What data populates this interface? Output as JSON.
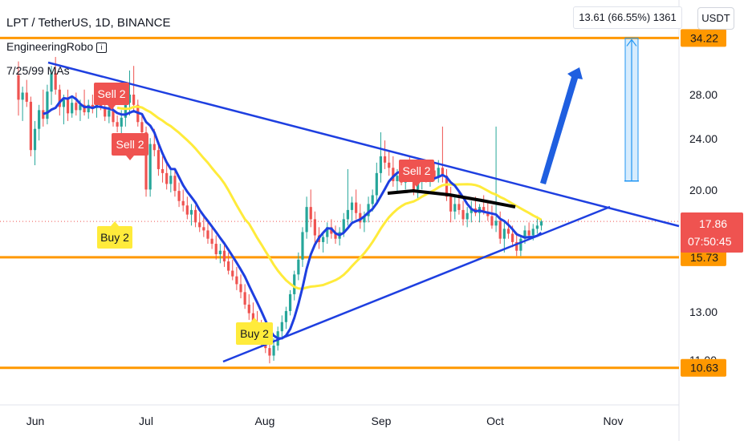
{
  "header": {
    "title": "LPT / TetherUS, 1D, BINANCE",
    "author": "EngineeringRobo",
    "author_icon": "info-icon",
    "indicator": "7/25/99 MAs"
  },
  "currency_button": "USDT",
  "measure_label": "13.61 (66.55%) 1361",
  "last_price": {
    "value": "17.86",
    "countdown": "07:50:45",
    "color": "#ef5350"
  },
  "colors": {
    "trendline": "#1e3fe0",
    "level": "#ff9800",
    "fast_ma": "#1e3fe0",
    "slow_ma": "#ffeb3b",
    "long_ma": "#000000",
    "sell_badge": "#ef5350",
    "buy_badge": "#ffeb3b",
    "arrow": "#1f5fe0",
    "measure": "#2196f3"
  },
  "chart_data": {
    "type": "candlestick",
    "symbol": "LPT / TetherUS",
    "interval": "1D",
    "exchange": "BINANCE",
    "x_ticks": [
      "Jun",
      "Jul",
      "Aug",
      "Sep",
      "Oct",
      "Nov"
    ],
    "y_ticks": [
      "28.00",
      "24.00",
      "20.00",
      "13.00",
      "11.00"
    ],
    "y_scale": "log",
    "price_labels": [
      "34.22",
      "15.73",
      "10.63"
    ],
    "horizontal_levels": [
      34.22,
      15.73,
      10.63
    ],
    "signals": [
      {
        "label": "Sell 2",
        "type": "sell"
      },
      {
        "label": "Sell 2",
        "type": "sell"
      },
      {
        "label": "Buy 2",
        "type": "buy"
      },
      {
        "label": "Buy 2",
        "type": "buy"
      },
      {
        "label": "Sell 2",
        "type": "sell"
      }
    ],
    "candles": [
      [
        30.0,
        31.5,
        26.0,
        27.5
      ],
      [
        27.5,
        28.8,
        25.5,
        28.2
      ],
      [
        28.2,
        29.5,
        26.8,
        27.3
      ],
      [
        27.3,
        27.8,
        22.5,
        23.0
      ],
      [
        23.0,
        25.5,
        21.8,
        24.8
      ],
      [
        24.8,
        27.0,
        23.8,
        26.5
      ],
      [
        26.5,
        28.5,
        25.0,
        25.7
      ],
      [
        25.7,
        29.0,
        25.2,
        28.3
      ],
      [
        28.3,
        31.0,
        27.0,
        30.2
      ],
      [
        30.2,
        32.0,
        28.0,
        28.5
      ],
      [
        28.5,
        29.0,
        26.0,
        26.8
      ],
      [
        26.8,
        28.0,
        25.2,
        27.5
      ],
      [
        27.5,
        28.5,
        25.5,
        26.2
      ],
      [
        26.2,
        27.8,
        25.8,
        27.2
      ],
      [
        27.2,
        28.2,
        26.0,
        26.5
      ],
      [
        26.5,
        27.5,
        25.5,
        27.0
      ],
      [
        27.0,
        28.5,
        26.0,
        26.3
      ],
      [
        26.3,
        27.5,
        25.7,
        27.0
      ],
      [
        27.0,
        28.0,
        26.2,
        26.7
      ],
      [
        26.7,
        27.8,
        25.8,
        27.3
      ],
      [
        27.3,
        28.0,
        26.5,
        26.8
      ],
      [
        26.8,
        27.2,
        25.5,
        25.9
      ],
      [
        25.9,
        27.0,
        25.3,
        26.5
      ],
      [
        26.5,
        27.0,
        25.0,
        25.4
      ],
      [
        25.4,
        26.0,
        24.5,
        25.0
      ],
      [
        25.0,
        26.5,
        24.2,
        25.8
      ],
      [
        25.8,
        28.0,
        25.0,
        27.2
      ],
      [
        27.2,
        30.5,
        26.0,
        28.0
      ],
      [
        28.0,
        31.0,
        26.5,
        27.0
      ],
      [
        27.0,
        27.5,
        25.0,
        25.4
      ],
      [
        25.4,
        26.0,
        24.0,
        24.5
      ],
      [
        24.5,
        25.0,
        19.5,
        20.0
      ],
      [
        20.0,
        24.0,
        19.5,
        23.5
      ],
      [
        23.5,
        24.8,
        22.5,
        23.0
      ],
      [
        23.0,
        23.5,
        21.0,
        21.5
      ],
      [
        21.5,
        22.5,
        20.5,
        21.2
      ],
      [
        21.2,
        22.0,
        20.0,
        20.4
      ],
      [
        20.4,
        21.5,
        19.8,
        21.0
      ],
      [
        21.0,
        21.5,
        19.5,
        19.9
      ],
      [
        19.9,
        20.5,
        18.8,
        19.2
      ],
      [
        19.2,
        20.0,
        18.5,
        18.9
      ],
      [
        18.9,
        19.5,
        18.0,
        18.3
      ],
      [
        18.3,
        19.0,
        17.6,
        18.6
      ],
      [
        18.6,
        18.9,
        17.5,
        17.8
      ],
      [
        17.8,
        18.4,
        17.2,
        17.5
      ],
      [
        17.5,
        18.2,
        16.9,
        17.3
      ],
      [
        17.3,
        17.8,
        16.5,
        16.8
      ],
      [
        16.8,
        17.5,
        16.2,
        16.5
      ],
      [
        16.5,
        17.0,
        15.6,
        15.9
      ],
      [
        15.9,
        16.5,
        15.4,
        16.1
      ],
      [
        16.1,
        16.4,
        15.2,
        15.5
      ],
      [
        15.5,
        16.0,
        14.8,
        15.0
      ],
      [
        15.0,
        15.6,
        14.5,
        14.7
      ],
      [
        14.7,
        15.2,
        14.0,
        14.3
      ],
      [
        14.3,
        14.8,
        13.6,
        13.9
      ],
      [
        13.9,
        14.3,
        13.1,
        13.3
      ],
      [
        13.3,
        13.8,
        12.6,
        12.9
      ],
      [
        12.9,
        13.4,
        12.3,
        12.5
      ],
      [
        12.5,
        13.0,
        11.8,
        12.2
      ],
      [
        12.2,
        12.6,
        11.5,
        11.8
      ],
      [
        11.8,
        12.3,
        11.2,
        11.4
      ],
      [
        11.4,
        11.8,
        10.8,
        11.1
      ],
      [
        11.1,
        11.8,
        10.9,
        11.5
      ],
      [
        11.5,
        12.3,
        11.3,
        12.1
      ],
      [
        12.1,
        12.8,
        11.8,
        12.5
      ],
      [
        12.5,
        13.2,
        12.2,
        13.0
      ],
      [
        13.0,
        14.0,
        12.8,
        13.8
      ],
      [
        13.8,
        15.0,
        13.5,
        14.8
      ],
      [
        14.8,
        16.0,
        14.5,
        15.6
      ],
      [
        15.6,
        17.5,
        15.2,
        17.2
      ],
      [
        17.2,
        19.5,
        16.8,
        18.8
      ],
      [
        18.8,
        20.0,
        17.5,
        18.0
      ],
      [
        18.0,
        18.5,
        16.5,
        17.0
      ],
      [
        17.0,
        17.5,
        16.2,
        16.6
      ],
      [
        16.6,
        17.2,
        16.0,
        16.9
      ],
      [
        16.9,
        17.8,
        16.5,
        17.5
      ],
      [
        17.5,
        18.0,
        16.8,
        17.1
      ],
      [
        17.1,
        17.6,
        16.5,
        16.8
      ],
      [
        16.8,
        17.5,
        16.4,
        17.2
      ],
      [
        17.2,
        18.4,
        16.9,
        18.0
      ],
      [
        18.0,
        21.5,
        17.6,
        18.6
      ],
      [
        18.6,
        19.5,
        17.8,
        19.1
      ],
      [
        19.1,
        20.0,
        18.0,
        18.4
      ],
      [
        18.4,
        19.0,
        17.4,
        17.8
      ],
      [
        17.8,
        18.5,
        17.2,
        18.2
      ],
      [
        18.2,
        19.5,
        17.8,
        19.0
      ],
      [
        19.0,
        20.0,
        18.5,
        19.6
      ],
      [
        19.6,
        22.0,
        19.0,
        21.2
      ],
      [
        21.2,
        24.5,
        20.5,
        22.5
      ],
      [
        22.5,
        23.8,
        21.5,
        22.0
      ],
      [
        22.0,
        23.0,
        21.0,
        21.6
      ],
      [
        21.6,
        22.5,
        20.2,
        20.6
      ],
      [
        20.6,
        21.5,
        19.8,
        21.0
      ],
      [
        21.0,
        22.0,
        20.3,
        20.5
      ],
      [
        20.5,
        21.8,
        20.0,
        21.3
      ],
      [
        21.3,
        22.5,
        20.6,
        20.8
      ],
      [
        20.8,
        21.5,
        19.6,
        20.0
      ],
      [
        20.0,
        21.0,
        19.4,
        20.6
      ],
      [
        20.6,
        21.8,
        20.0,
        21.2
      ],
      [
        21.2,
        22.0,
        20.5,
        20.7
      ],
      [
        20.7,
        21.8,
        20.2,
        21.4
      ],
      [
        21.4,
        22.0,
        20.6,
        20.9
      ],
      [
        20.9,
        22.2,
        20.5,
        21.6
      ],
      [
        21.6,
        25.0,
        20.5,
        21.0
      ],
      [
        21.0,
        21.5,
        19.2,
        19.5
      ],
      [
        19.5,
        20.2,
        17.8,
        18.5
      ],
      [
        18.5,
        19.5,
        18.0,
        19.0
      ],
      [
        19.0,
        19.8,
        18.3,
        18.6
      ],
      [
        18.6,
        19.2,
        17.6,
        18.0
      ],
      [
        18.0,
        18.8,
        17.5,
        18.4
      ],
      [
        18.4,
        19.2,
        17.8,
        18.7
      ],
      [
        18.7,
        19.5,
        18.2,
        18.4
      ],
      [
        18.4,
        19.0,
        17.8,
        18.8
      ],
      [
        18.8,
        19.6,
        18.3,
        18.5
      ],
      [
        18.5,
        19.2,
        17.9,
        18.2
      ],
      [
        18.2,
        18.9,
        17.4,
        17.6
      ],
      [
        17.6,
        25.0,
        17.2,
        17.9
      ],
      [
        17.9,
        18.5,
        16.5,
        16.8
      ],
      [
        16.8,
        17.8,
        16.0,
        17.4
      ],
      [
        17.4,
        18.0,
        16.8,
        17.1
      ],
      [
        17.1,
        17.6,
        16.3,
        16.6
      ],
      [
        16.6,
        17.2,
        15.8,
        16.1
      ],
      [
        16.1,
        17.0,
        15.8,
        16.8
      ],
      [
        16.8,
        17.6,
        16.5,
        17.3
      ],
      [
        17.3,
        17.8,
        16.8,
        17.0
      ],
      [
        17.0,
        17.7,
        16.7,
        17.4
      ],
      [
        17.4,
        18.2,
        17.1,
        17.6
      ],
      [
        17.6,
        18.0,
        17.3,
        17.86
      ]
    ],
    "moving_averages": [
      {
        "name": "MA 7",
        "color": "#1e3fe0"
      },
      {
        "name": "MA 25",
        "color": "#ffeb3b"
      },
      {
        "name": "MA 99",
        "color": "#000000"
      }
    ],
    "annotations": [
      "descending trendline",
      "ascending trendline",
      "projection arrow",
      "price range measure"
    ],
    "grid": false,
    "legend": "none"
  }
}
